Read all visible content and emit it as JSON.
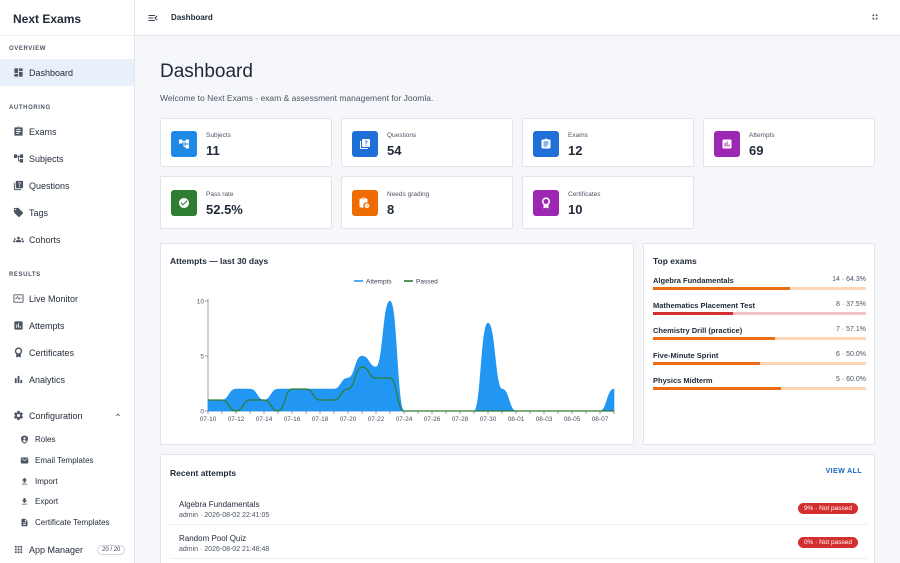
{
  "app": {
    "title": "Next Exams"
  },
  "sidebar": {
    "overview_label": "OVERVIEW",
    "dashboard": "Dashboard",
    "authoring_label": "AUTHORING",
    "exams": "Exams",
    "subjects": "Subjects",
    "questions": "Questions",
    "tags": "Tags",
    "cohorts": "Cohorts",
    "results_label": "RESULTS",
    "live_monitor": "Live Monitor",
    "attempts": "Attempts",
    "certificates": "Certificates",
    "analytics": "Analytics",
    "configuration": "Configuration",
    "roles": "Roles",
    "email_templates": "Email Templates",
    "import": "Import",
    "export": "Export",
    "certificate_templates": "Certificate Templates",
    "app_manager": "App Manager",
    "app_manager_badge": "20 / 20"
  },
  "topbar": {
    "title": "Dashboard"
  },
  "page": {
    "title": "Dashboard",
    "welcome": "Welcome to Next Exams - exam & assessment management for Joomla."
  },
  "stats": [
    {
      "label": "Subjects",
      "value": "11",
      "color": "#1e88e5",
      "icon": "hierarchy-icon"
    },
    {
      "label": "Questions",
      "value": "54",
      "color": "#1e6fd6",
      "icon": "question-book-icon"
    },
    {
      "label": "Exams",
      "value": "12",
      "color": "#1e6fd6",
      "icon": "clipboard-icon"
    },
    {
      "label": "Attempts",
      "value": "69",
      "color": "#9c27b0",
      "icon": "bar-chart-icon"
    },
    {
      "label": "Pass rate",
      "value": "52.5%",
      "color": "#2e7d32",
      "icon": "check-circle-icon"
    },
    {
      "label": "Needs grading",
      "value": "8",
      "color": "#ef6c00",
      "icon": "clipboard-clock-icon"
    },
    {
      "label": "Certificates",
      "value": "10",
      "color": "#9c27b0",
      "icon": "award-icon"
    }
  ],
  "chart_data": {
    "type": "area",
    "title": "Attempts — last 30 days",
    "legend": [
      "Attempts",
      "Passed"
    ],
    "legend_position": "top-center",
    "ylim": [
      0,
      10
    ],
    "yticks": [
      0,
      5,
      10
    ],
    "x": [
      "07-10",
      "07-11",
      "07-12",
      "07-13",
      "07-14",
      "07-15",
      "07-16",
      "07-17",
      "07-18",
      "07-19",
      "07-20",
      "07-21",
      "07-22",
      "07-23",
      "07-24",
      "07-25",
      "07-26",
      "07-27",
      "07-28",
      "07-29",
      "07-30",
      "07-31",
      "08-01",
      "08-02",
      "08-03",
      "08-04",
      "08-05",
      "08-06",
      "08-07",
      "08-08"
    ],
    "xtick_labels": [
      "07-10",
      "07-12",
      "07-14",
      "07-16",
      "07-18",
      "07-20",
      "07-22",
      "07-24",
      "07-26",
      "07-28",
      "07-30",
      "08-01",
      "08-03",
      "08-05",
      "08-07"
    ],
    "series": [
      {
        "name": "Attempts",
        "color": "#2196f3",
        "values": [
          1,
          1,
          2,
          2,
          1,
          2,
          2,
          2,
          2,
          2,
          3,
          5,
          4,
          10,
          0,
          0,
          0,
          0,
          0,
          0,
          8,
          2,
          0,
          0,
          0,
          0,
          0,
          0,
          0,
          2
        ]
      },
      {
        "name": "Passed",
        "color": "#2e7d32",
        "values": [
          1,
          1,
          0,
          1,
          1,
          0,
          2,
          2,
          1,
          1,
          2,
          4,
          3,
          3,
          0,
          0,
          0,
          0,
          0,
          0,
          0,
          0,
          0,
          0,
          0,
          0,
          0,
          0,
          0,
          0
        ]
      }
    ]
  },
  "top_exams": {
    "title": "Top exams",
    "items": [
      {
        "name": "Algebra Fundamentals",
        "stat": "14 · 64.3%",
        "rate": 0.643,
        "color": "#ea6c15",
        "track": "#fdd6b8"
      },
      {
        "name": "Mathematics Placement Test",
        "stat": "8 · 37.5%",
        "rate": 0.375,
        "color": "#d32f2f",
        "track": "#f3c2c2"
      },
      {
        "name": "Chemistry Drill (practice)",
        "stat": "7 · 57.1%",
        "rate": 0.571,
        "color": "#ea6c15",
        "track": "#fdd6b8"
      },
      {
        "name": "Five-Minute Sprint",
        "stat": "6 · 50.0%",
        "rate": 0.5,
        "color": "#ea6c15",
        "track": "#fdd6b8"
      },
      {
        "name": "Physics Midterm",
        "stat": "5 · 60.0%",
        "rate": 0.6,
        "color": "#ea6c15",
        "track": "#fdd6b8"
      }
    ]
  },
  "recent": {
    "title": "Recent attempts",
    "view_all": "VIEW ALL",
    "items": [
      {
        "name": "Algebra Fundamentals",
        "meta": "admin · 2026-08-02 22:41:05",
        "status": "9% · Not passed"
      },
      {
        "name": "Random Pool Quiz",
        "meta": "admin · 2026-08-02 21:48:48",
        "status": "0% · Not passed"
      }
    ]
  }
}
